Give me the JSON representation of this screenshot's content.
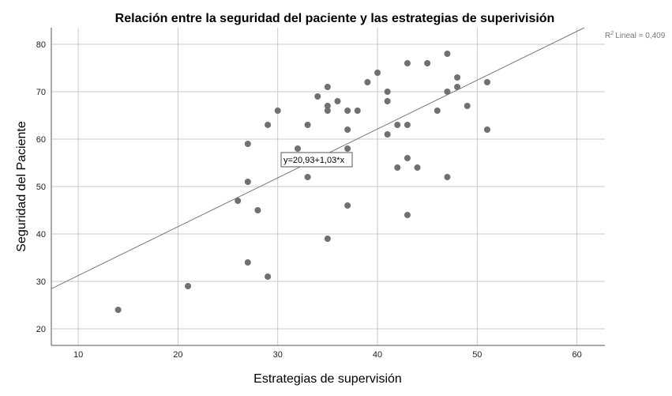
{
  "chart_data": {
    "type": "scatter",
    "title": "Relación entre la seguridad del paciente y las estrategias de superivisión",
    "xlabel": "Estrategias de supervisión",
    "ylabel": "Seguridad del Paciente",
    "xlim": [
      7.3,
      62.8
    ],
    "ylim": [
      16.5,
      83.5
    ],
    "xticks": [
      10,
      20,
      30,
      40,
      50,
      60
    ],
    "yticks": [
      20,
      30,
      40,
      50,
      60,
      70,
      80
    ],
    "grid": true,
    "points": [
      {
        "x": 14,
        "y": 24
      },
      {
        "x": 21,
        "y": 29
      },
      {
        "x": 26,
        "y": 47
      },
      {
        "x": 27,
        "y": 59
      },
      {
        "x": 27,
        "y": 51
      },
      {
        "x": 27,
        "y": 34
      },
      {
        "x": 28,
        "y": 45
      },
      {
        "x": 29,
        "y": 63
      },
      {
        "x": 29,
        "y": 31
      },
      {
        "x": 30,
        "y": 66
      },
      {
        "x": 32,
        "y": 58
      },
      {
        "x": 33,
        "y": 63
      },
      {
        "x": 33,
        "y": 52
      },
      {
        "x": 34,
        "y": 69
      },
      {
        "x": 35,
        "y": 71
      },
      {
        "x": 35,
        "y": 67
      },
      {
        "x": 35,
        "y": 66
      },
      {
        "x": 35,
        "y": 39
      },
      {
        "x": 36,
        "y": 68
      },
      {
        "x": 37,
        "y": 66
      },
      {
        "x": 37,
        "y": 62
      },
      {
        "x": 37,
        "y": 58
      },
      {
        "x": 37,
        "y": 46
      },
      {
        "x": 38,
        "y": 66
      },
      {
        "x": 39,
        "y": 72
      },
      {
        "x": 40,
        "y": 74
      },
      {
        "x": 41,
        "y": 70
      },
      {
        "x": 41,
        "y": 68
      },
      {
        "x": 41,
        "y": 61
      },
      {
        "x": 42,
        "y": 63
      },
      {
        "x": 42,
        "y": 54
      },
      {
        "x": 43,
        "y": 76
      },
      {
        "x": 43,
        "y": 63
      },
      {
        "x": 43,
        "y": 56
      },
      {
        "x": 43,
        "y": 44
      },
      {
        "x": 44,
        "y": 54
      },
      {
        "x": 45,
        "y": 76
      },
      {
        "x": 46,
        "y": 66
      },
      {
        "x": 47,
        "y": 78
      },
      {
        "x": 47,
        "y": 70
      },
      {
        "x": 47,
        "y": 52
      },
      {
        "x": 48,
        "y": 73
      },
      {
        "x": 48,
        "y": 71
      },
      {
        "x": 49,
        "y": 67
      },
      {
        "x": 51,
        "y": 72
      },
      {
        "x": 51,
        "y": 62
      }
    ],
    "fit_line": {
      "intercept": 20.93,
      "slope": 1.03
    },
    "equation_label": "y=20,93+1,03*x",
    "r2_label": "Lineal = 0,409",
    "r2_prefix": "R",
    "r2_sup": "2",
    "colors": {
      "points": "#707070",
      "grid": "#c8c8c8",
      "fit_line": "#7a7a7a",
      "axis": "#555555"
    }
  }
}
